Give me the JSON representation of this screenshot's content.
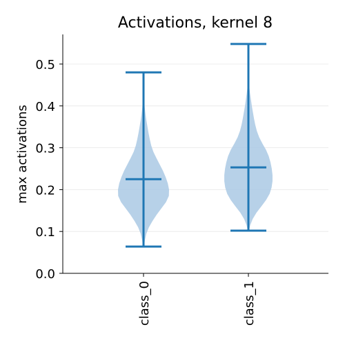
{
  "chart_data": {
    "type": "violin",
    "title": "Activations, kernel 8",
    "xlabel": "",
    "ylabel": "max activations",
    "ylim": [
      0.0,
      0.57
    ],
    "yticks": [
      0.0,
      0.1,
      0.2,
      0.3,
      0.4,
      0.5
    ],
    "ytick_labels": [
      "0.0",
      "0.1",
      "0.2",
      "0.3",
      "0.4",
      "0.5"
    ],
    "categories": [
      "class_0",
      "class_1"
    ],
    "grid": "horizontal",
    "violin_color": "#aac9e4",
    "line_color": "#1f77b4",
    "series": [
      {
        "category": "class_0",
        "min": 0.064,
        "max": 0.48,
        "median": 0.225,
        "density_profile": [
          [
            0.065,
            0.003
          ],
          [
            0.08,
            0.008
          ],
          [
            0.095,
            0.016
          ],
          [
            0.11,
            0.03
          ],
          [
            0.125,
            0.05
          ],
          [
            0.14,
            0.073
          ],
          [
            0.155,
            0.099
          ],
          [
            0.17,
            0.125
          ],
          [
            0.185,
            0.141
          ],
          [
            0.2,
            0.142
          ],
          [
            0.215,
            0.135
          ],
          [
            0.23,
            0.123
          ],
          [
            0.245,
            0.108
          ],
          [
            0.26,
            0.09
          ],
          [
            0.275,
            0.072
          ],
          [
            0.29,
            0.055
          ],
          [
            0.305,
            0.043
          ],
          [
            0.32,
            0.035
          ],
          [
            0.335,
            0.028
          ],
          [
            0.35,
            0.022
          ],
          [
            0.365,
            0.016
          ],
          [
            0.38,
            0.011
          ],
          [
            0.395,
            0.007
          ],
          [
            0.41,
            0.004
          ],
          [
            0.425,
            0.002
          ],
          [
            0.44,
            0.001
          ],
          [
            0.48,
            0.0003
          ]
        ]
      },
      {
        "category": "class_1",
        "min": 0.102,
        "max": 0.548,
        "median": 0.253,
        "density_profile": [
          [
            0.102,
            0.003
          ],
          [
            0.115,
            0.01
          ],
          [
            0.13,
            0.024
          ],
          [
            0.145,
            0.045
          ],
          [
            0.16,
            0.072
          ],
          [
            0.175,
            0.098
          ],
          [
            0.19,
            0.118
          ],
          [
            0.205,
            0.129
          ],
          [
            0.22,
            0.134
          ],
          [
            0.235,
            0.134
          ],
          [
            0.25,
            0.13
          ],
          [
            0.265,
            0.123
          ],
          [
            0.28,
            0.113
          ],
          [
            0.295,
            0.098
          ],
          [
            0.31,
            0.078
          ],
          [
            0.325,
            0.06
          ],
          [
            0.34,
            0.047
          ],
          [
            0.355,
            0.038
          ],
          [
            0.37,
            0.031
          ],
          [
            0.385,
            0.025
          ],
          [
            0.4,
            0.019
          ],
          [
            0.415,
            0.014
          ],
          [
            0.43,
            0.009
          ],
          [
            0.445,
            0.005
          ],
          [
            0.46,
            0.003
          ],
          [
            0.48,
            0.001
          ],
          [
            0.548,
            0.0003
          ]
        ]
      }
    ]
  }
}
